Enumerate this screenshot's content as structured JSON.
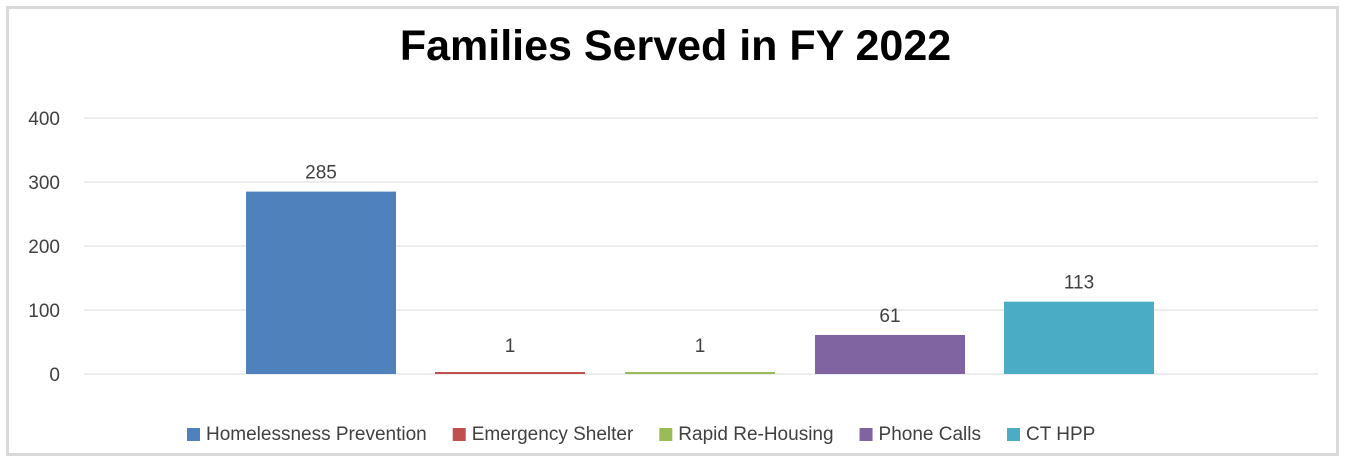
{
  "chart_data": {
    "type": "bar",
    "title": "Families Served in FY 2022",
    "xlabel": "",
    "ylabel": "",
    "ylim": [
      0,
      400
    ],
    "yticks": [
      0,
      100,
      200,
      300,
      400
    ],
    "grid": true,
    "legend_position": "bottom",
    "series": [
      {
        "name": "Homelessness Prevention",
        "value": 285,
        "color": "#4f81bd"
      },
      {
        "name": "Emergency Shelter",
        "value": 1,
        "color": "#c0504d"
      },
      {
        "name": "Rapid Re-Housing",
        "value": 1,
        "color": "#9bbb59"
      },
      {
        "name": "Phone Calls",
        "value": 61,
        "color": "#8064a2"
      },
      {
        "name": "CT HPP",
        "value": 113,
        "color": "#4bacc6"
      }
    ],
    "data_labels": [
      "285",
      "1",
      "1",
      "61",
      "113"
    ]
  }
}
